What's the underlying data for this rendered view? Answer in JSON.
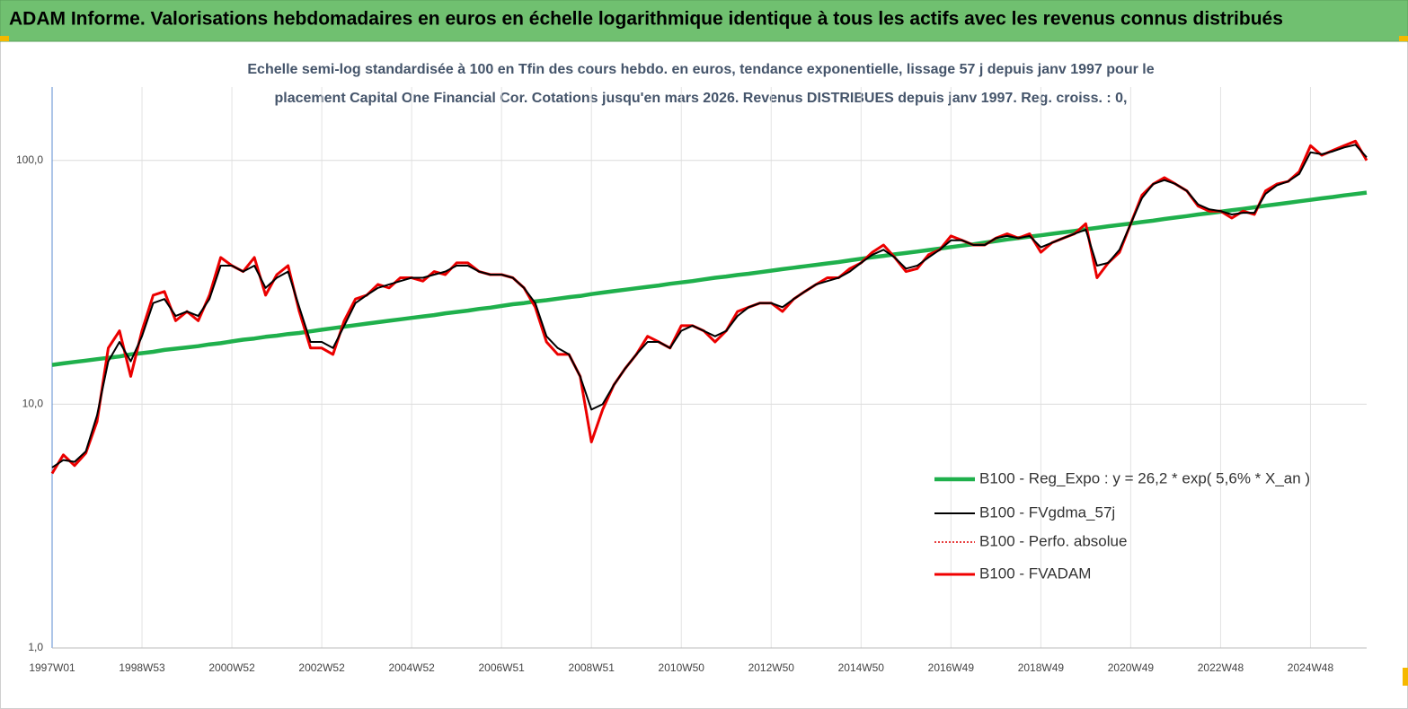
{
  "chart_data": {
    "type": "line",
    "title": "ADAM Informe. Valorisations hebdomadaires en euros en échelle logarithmique identique à tous les actifs avec les revenus connus distribués",
    "subtitle": [
      "Echelle semi-log standardisée à 100 en Tfin des cours hebdo. en euros, tendance exponentielle, lissage 57 j depuis janv 1997 pour le",
      "placement Capital One Financial Cor. Cotations jusqu'en mars 2026. Revenus DISTRIBUES depuis janv 1997. Reg. croiss. : 0,"
    ],
    "log_scale": true,
    "grid": true,
    "legend_position": "lower right",
    "ylim": [
      1,
      200
    ],
    "yticks": [
      {
        "value": 1,
        "label": "1,0"
      },
      {
        "value": 10,
        "label": "10,0"
      },
      {
        "value": 100,
        "label": "100,0"
      }
    ],
    "categories": [
      "1997W01",
      null,
      null,
      null,
      null,
      null,
      null,
      null,
      "1998W53",
      null,
      null,
      null,
      null,
      null,
      null,
      null,
      "2000W52",
      null,
      null,
      null,
      null,
      null,
      null,
      null,
      "2002W52",
      null,
      null,
      null,
      null,
      null,
      null,
      null,
      "2004W52",
      null,
      null,
      null,
      null,
      null,
      null,
      null,
      "2006W51",
      null,
      null,
      null,
      null,
      null,
      null,
      null,
      "2008W51",
      null,
      null,
      null,
      null,
      null,
      null,
      null,
      "2010W50",
      null,
      null,
      null,
      null,
      null,
      null,
      null,
      "2012W50",
      null,
      null,
      null,
      null,
      null,
      null,
      null,
      "2014W50",
      null,
      null,
      null,
      null,
      null,
      null,
      null,
      "2016W49",
      null,
      null,
      null,
      null,
      null,
      null,
      null,
      "2018W49",
      null,
      null,
      null,
      null,
      null,
      null,
      null,
      "2020W49",
      null,
      null,
      null,
      null,
      null,
      null,
      null,
      "2022W48",
      null,
      null,
      null,
      null,
      null,
      null,
      null,
      "2024W48",
      null,
      null,
      null,
      null,
      null
    ],
    "series": [
      {
        "name": "B100 - Reg_Expo : y = 26,2 * exp( 5,6% * X_an )",
        "color": "#1fb04c",
        "values": [
          14.5,
          14.7,
          14.9,
          15.1,
          15.3,
          15.5,
          15.7,
          16.0,
          16.2,
          16.4,
          16.7,
          16.9,
          17.1,
          17.3,
          17.6,
          17.8,
          18.1,
          18.4,
          18.6,
          18.9,
          19.1,
          19.4,
          19.6,
          19.9,
          20.2,
          20.5,
          20.8,
          21.1,
          21.4,
          21.7,
          22.0,
          22.3,
          22.6,
          22.9,
          23.2,
          23.6,
          23.9,
          24.2,
          24.6,
          24.9,
          25.3,
          25.7,
          26.0,
          26.4,
          26.7,
          27.1,
          27.5,
          27.8,
          28.3,
          28.7,
          29.1,
          29.5,
          29.9,
          30.3,
          30.7,
          31.2,
          31.6,
          32.0,
          32.5,
          33.0,
          33.4,
          33.9,
          34.3,
          34.8,
          35.3,
          35.8,
          36.3,
          36.8,
          37.3,
          37.8,
          38.3,
          38.9,
          39.5,
          40.1,
          40.6,
          41.2,
          41.7,
          42.3,
          42.9,
          43.5,
          44.1,
          44.7,
          45.3,
          46.0,
          46.7,
          47.4,
          48.0,
          48.7,
          49.3,
          50.0,
          50.7,
          51.4,
          52.2,
          52.9,
          53.7,
          54.4,
          55.1,
          55.9,
          56.6,
          57.5,
          58.3,
          59.1,
          60.0,
          60.8,
          61.6,
          62.5,
          63.3,
          64.2,
          65.2,
          66.1,
          67.0,
          68.0,
          68.9,
          69.9,
          70.8,
          71.9,
          72.8,
          73.8
        ]
      },
      {
        "name": "B100 - FVgdma_57j",
        "color": "#000000",
        "values": [
          5.5,
          5.9,
          5.8,
          6.4,
          9,
          15,
          18,
          15,
          19,
          26,
          27,
          23,
          24,
          23,
          27,
          37,
          37,
          35,
          37,
          30,
          33,
          35,
          25,
          18,
          18,
          17,
          21,
          26,
          28,
          30,
          31,
          32,
          33,
          33,
          34,
          35,
          37,
          37,
          35,
          34,
          34,
          33,
          30,
          26,
          19,
          17,
          16,
          13,
          9.5,
          10,
          12,
          14,
          16,
          18,
          18,
          17,
          20,
          21,
          20,
          19,
          20,
          23,
          25,
          26,
          26,
          25,
          27,
          29,
          31,
          32,
          33,
          35,
          38,
          41,
          43,
          40,
          36,
          37,
          40,
          43,
          47,
          47,
          45,
          45,
          48,
          49,
          48,
          49,
          44,
          46,
          48,
          50,
          52,
          37,
          38,
          43,
          55,
          70,
          80,
          83,
          80,
          75,
          66,
          63,
          62,
          60,
          61,
          61,
          73,
          79,
          82,
          88,
          108,
          106,
          109,
          113,
          116,
          103
        ]
      },
      {
        "name": "B100 - Perfo. absolue",
        "color": "#e00000",
        "line_style": "dotted",
        "values": [
          5.2,
          6.2,
          5.6,
          6.3,
          8.5,
          17,
          20,
          13,
          20,
          28,
          29,
          22,
          24,
          22,
          28,
          40,
          37,
          35,
          40,
          28,
          34,
          37,
          24,
          17,
          17,
          16,
          22,
          27,
          28,
          31,
          30,
          33,
          33,
          32,
          35,
          34,
          38,
          38,
          35,
          34,
          34,
          33,
          30,
          25,
          18,
          16,
          16,
          13,
          7,
          9.5,
          12,
          14,
          16,
          19,
          18,
          17,
          21,
          21,
          20,
          18,
          20,
          24,
          25,
          26,
          26,
          24,
          27,
          29,
          31,
          33,
          33,
          36,
          38,
          42,
          45,
          40,
          35,
          36,
          41,
          43,
          49,
          47,
          45,
          45,
          48,
          50,
          48,
          50,
          42,
          46,
          48,
          50,
          55,
          33,
          38,
          42,
          55,
          72,
          80,
          85,
          80,
          75,
          65,
          62,
          62,
          58,
          62,
          60,
          75,
          80,
          82,
          90,
          115,
          105,
          110,
          115,
          120,
          100
        ]
      },
      {
        "name": "B100 - FVADAM",
        "color": "#f00000",
        "values": [
          5.2,
          6.2,
          5.6,
          6.3,
          8.5,
          17,
          20,
          13,
          20,
          28,
          29,
          22,
          24,
          22,
          28,
          40,
          37,
          35,
          40,
          28,
          34,
          37,
          24,
          17,
          17,
          16,
          22,
          27,
          28,
          31,
          30,
          33,
          33,
          32,
          35,
          34,
          38,
          38,
          35,
          34,
          34,
          33,
          30,
          25,
          18,
          16,
          16,
          13,
          7,
          9.5,
          12,
          14,
          16,
          19,
          18,
          17,
          21,
          21,
          20,
          18,
          20,
          24,
          25,
          26,
          26,
          24,
          27,
          29,
          31,
          33,
          33,
          36,
          38,
          42,
          45,
          40,
          35,
          36,
          41,
          43,
          49,
          47,
          45,
          45,
          48,
          50,
          48,
          50,
          42,
          46,
          48,
          50,
          55,
          33,
          38,
          42,
          55,
          72,
          80,
          85,
          80,
          75,
          65,
          62,
          62,
          58,
          62,
          60,
          75,
          80,
          82,
          90,
          115,
          105,
          110,
          115,
          120,
          100
        ]
      }
    ]
  }
}
